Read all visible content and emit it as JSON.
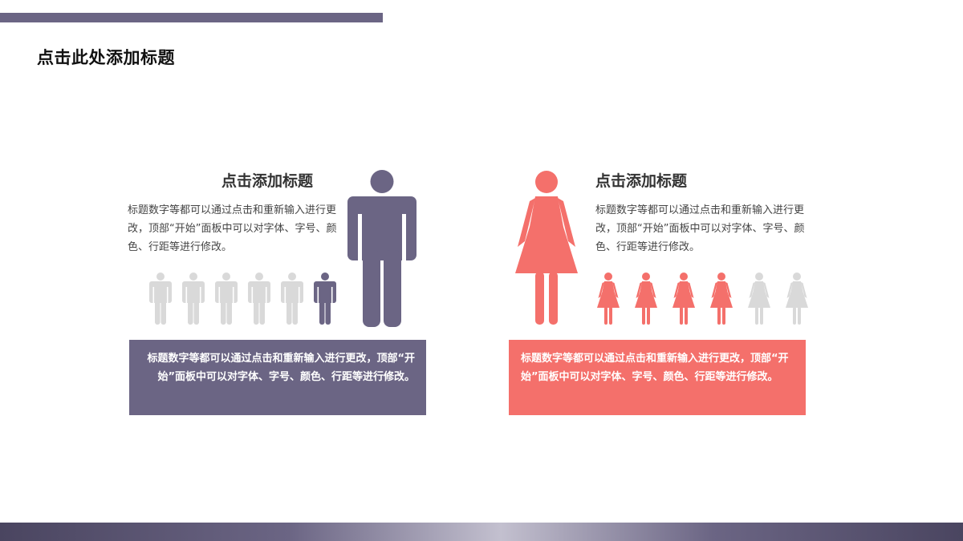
{
  "slide_title": "点击此处添加标题",
  "colors": {
    "accent_purple": "#6b6584",
    "accent_coral": "#f4706b",
    "inactive_gray": "#d9d9d9"
  },
  "male_section": {
    "title": "点击添加标题",
    "description": "标题数字等都可以通过点击和重新输入进行更改，顶部“开始”面板中可以对字体、字号、颜色、行距等进行修改。",
    "box_text": "标题数字等都可以通过点击和重新输入进行更改，顶部“开始”面板中可以对字体、字号、颜色、行距等进行修改。",
    "icon": "male-person-icon",
    "small_icons_total": 6,
    "small_icons_highlighted": 1
  },
  "female_section": {
    "title": "点击添加标题",
    "description": "标题数字等都可以通过点击和重新输入进行更改，顶部“开始”面板中可以对字体、字号、颜色、行距等进行修改。",
    "box_text": "标题数字等都可以通过点击和重新输入进行更改，顶部“开始”面板中可以对字体、字号、颜色、行距等进行修改。",
    "icon": "female-person-icon",
    "small_icons_total": 6,
    "small_icons_highlighted": 4
  }
}
